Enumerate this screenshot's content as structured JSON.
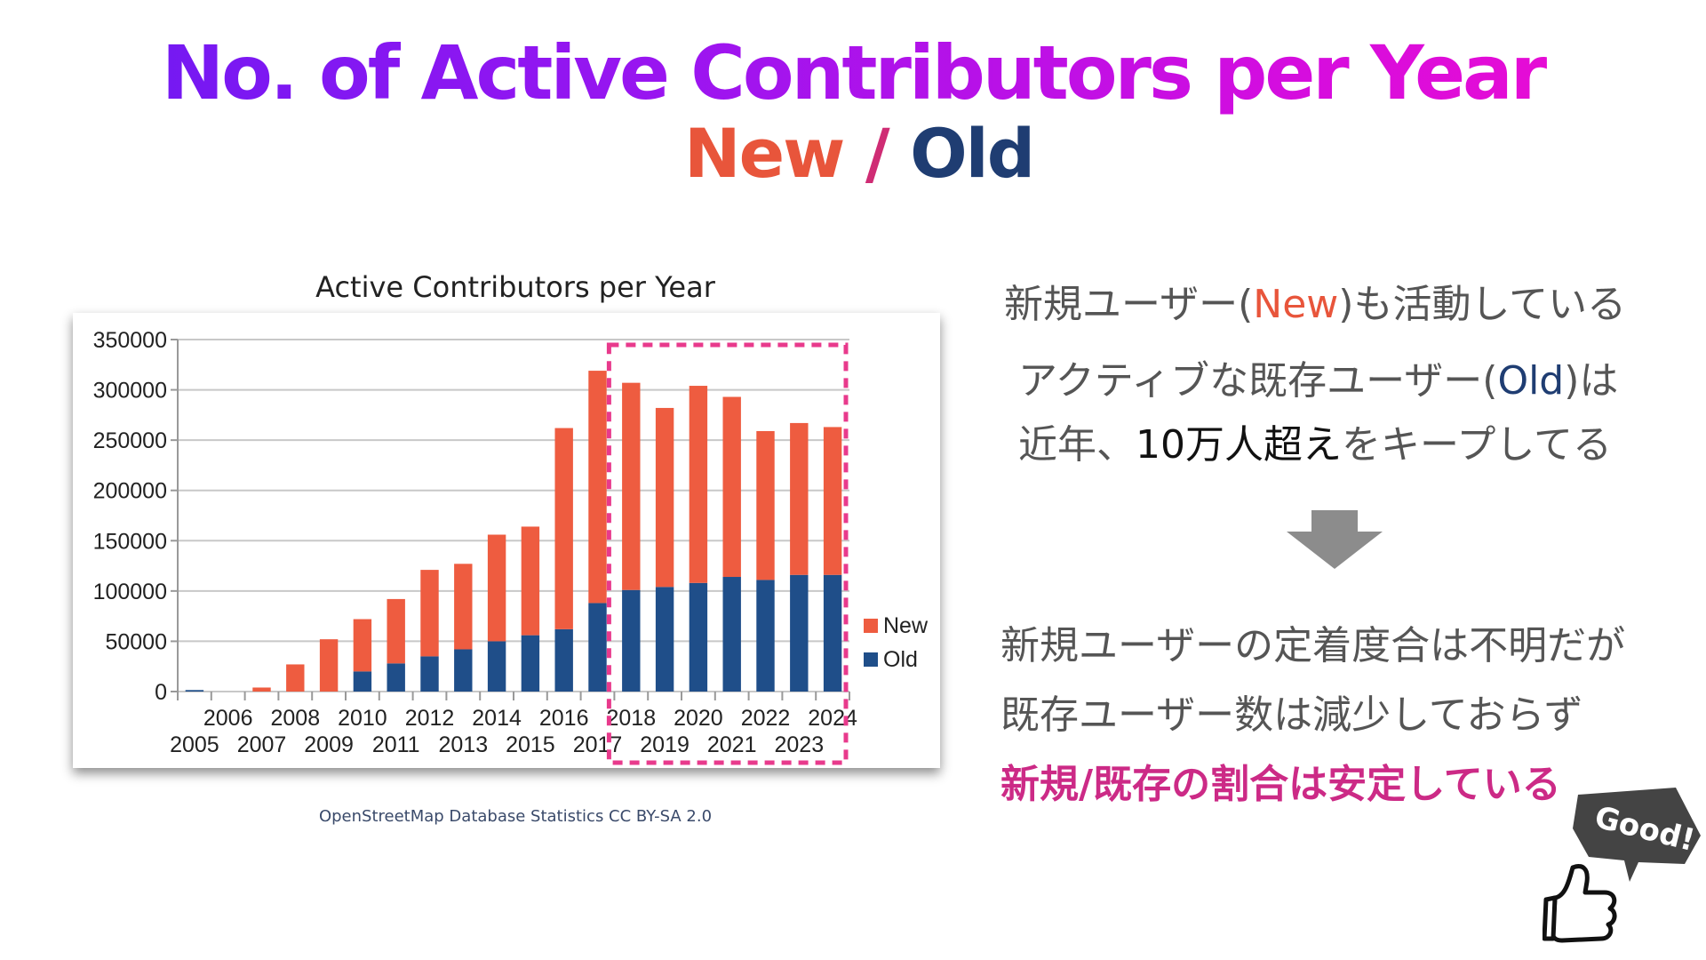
{
  "slide": {
    "title": "No. of Active Contributors per Year",
    "subtitle_new": "New",
    "subtitle_sep": " / ",
    "subtitle_old": "Old"
  },
  "chart_data": {
    "type": "bar",
    "stacked": true,
    "title": "Active Contributors per Year",
    "xlabel": "",
    "ylabel": "",
    "categories": [
      "2005",
      "2006",
      "2007",
      "2008",
      "2009",
      "2010",
      "2011",
      "2012",
      "2013",
      "2014",
      "2015",
      "2016",
      "2017",
      "2018",
      "2019",
      "2020",
      "2021",
      "2022",
      "2023",
      "2024"
    ],
    "series": [
      {
        "name": "Old",
        "color": "#1f4e89",
        "values": [
          1500,
          0,
          0,
          0,
          0,
          20000,
          28000,
          35000,
          42000,
          50000,
          56000,
          62000,
          88000,
          101000,
          104000,
          108000,
          114000,
          111000,
          116000,
          116000
        ]
      },
      {
        "name": "New",
        "color": "#ee5c40",
        "values": [
          0,
          0,
          4000,
          27000,
          52000,
          52000,
          64000,
          86000,
          85000,
          106000,
          108000,
          200000,
          231000,
          206000,
          178000,
          196000,
          179000,
          148000,
          151000,
          147000
        ]
      }
    ],
    "ylim": [
      0,
      350000
    ],
    "yticks": [
      "0",
      "50000",
      "100000",
      "150000",
      "200000",
      "250000",
      "300000",
      "350000"
    ],
    "grid": true,
    "legend_position": "right",
    "highlight_range": [
      "2018",
      "2024"
    ],
    "highlight_color": "#e83a8c"
  },
  "source": "OpenStreetMap Database Statistics  CC BY-SA 2.0",
  "notes": {
    "line1_pre": "新規ユーザー(",
    "line1_new": "New",
    "line1_post": ")も活動している",
    "line2_pre": "アクティブな既存ユーザー(",
    "line2_old": "Old",
    "line2_post": ")は",
    "line3_pre": "近年、",
    "line3_emph": "10万人超え",
    "line3_post": "をキープしてる",
    "line4": "新規ユーザーの定着度合は不明だが",
    "line5": "既存ユーザー数は減少しておらず",
    "line6": "新規/既存の割合は安定している"
  },
  "sticker": {
    "text": "Good!"
  },
  "colors": {
    "arrow": "#8c8c8c",
    "highlight_text": "#cc2a86"
  }
}
